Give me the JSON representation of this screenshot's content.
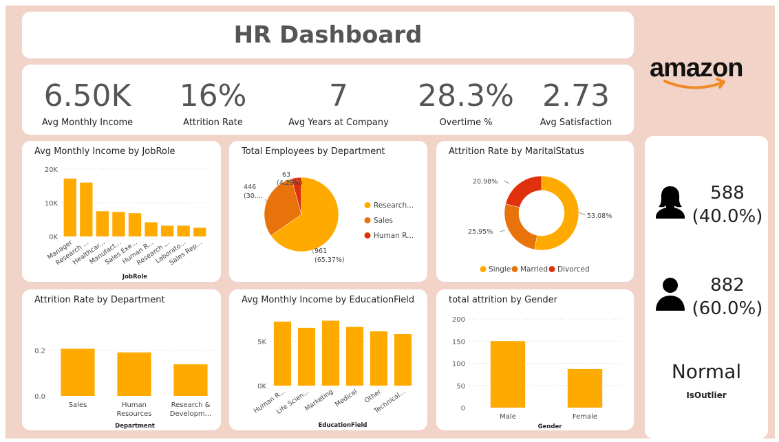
{
  "header": {
    "title": "HR Dashboard"
  },
  "brand": {
    "logo_text": "amazon"
  },
  "kpis": [
    {
      "value": "6.50K",
      "label": "Avg Monthly Income"
    },
    {
      "value": "16%",
      "label": "Attrition Rate"
    },
    {
      "value": "7",
      "label": "Avg Years at Company"
    },
    {
      "value": "28.3%",
      "label": "Overtime %"
    },
    {
      "value": "2.73",
      "label": "Avg Satisfaction"
    }
  ],
  "colors": {
    "primary": "#FFAA00",
    "secondary": "#E8730A",
    "tertiary": "#E0310C",
    "background": "#F2D3C8"
  },
  "gender_cards": {
    "female": {
      "value": "588",
      "pct": "(40.0%)",
      "icon": "female-person-icon"
    },
    "male": {
      "value": "882",
      "pct": "(60.0%)",
      "icon": "male-person-icon"
    }
  },
  "outlier_card": {
    "value": "Normal",
    "label": "IsOutlier"
  },
  "chart_data": [
    {
      "id": "income_by_jobrole",
      "type": "bar",
      "title": "Avg Monthly Income by JobRole",
      "xlabel": "JobRole",
      "categories": [
        "Manager",
        "Research ...",
        "Healthcar...",
        "Manufact...",
        "Sales Exe...",
        "Human R...",
        "Research ...",
        "Laborato...",
        "Sales Rep..."
      ],
      "values": [
        17200,
        16000,
        7500,
        7300,
        6900,
        4200,
        3200,
        3200,
        2600
      ],
      "ylim": [
        0,
        20000
      ],
      "yticks": [
        0,
        10000,
        20000
      ],
      "ytick_labels": [
        "0K",
        "10K",
        "20K"
      ],
      "grid": true
    },
    {
      "id": "employees_by_department",
      "type": "pie",
      "title": "Total Employees by Department",
      "labels": [
        "Research...",
        "Sales",
        "Human R..."
      ],
      "values": [
        961,
        446,
        63
      ],
      "data_labels": [
        {
          "value": "961",
          "pct": "(65.37%)"
        },
        {
          "value": "446",
          "pct": "(30...."
        },
        {
          "value": "63",
          "pct": "(4.29%)"
        }
      ],
      "legend": "right"
    },
    {
      "id": "attrition_by_marital",
      "type": "pie",
      "donut": true,
      "title": "Attrition Rate by MaritalStatus",
      "labels": [
        "Single",
        "Married",
        "Divorced"
      ],
      "values": [
        53.08,
        25.95,
        20.98
      ],
      "data_labels": [
        "53.08%",
        "25.95%",
        "20.98%"
      ],
      "legend": "bottom"
    },
    {
      "id": "attrition_by_department",
      "type": "bar",
      "title": "Attrition Rate by Department",
      "xlabel": "Department",
      "categories": [
        "Sales",
        "Human Resources",
        "Research & Developm..."
      ],
      "category_lines": [
        [
          "Sales"
        ],
        [
          "Human",
          "Resources"
        ],
        [
          "Research &",
          "Developm..."
        ]
      ],
      "values": [
        0.206,
        0.19,
        0.138
      ],
      "ylim": [
        0,
        0.3
      ],
      "yticks": [
        0,
        0.2
      ],
      "ytick_labels": [
        "0.0",
        "0.2"
      ],
      "grid": true
    },
    {
      "id": "income_by_education",
      "type": "bar",
      "title": "Avg Monthly Income by EducationField",
      "xlabel": "EducationField",
      "categories": [
        "Human R...",
        "Life Scien...",
        "Marketing",
        "Medical",
        "Other",
        "Technical..."
      ],
      "values": [
        7200,
        6500,
        7300,
        6600,
        6100,
        5800
      ],
      "ylim": [
        0,
        8500
      ],
      "yticks": [
        0,
        5000
      ],
      "ytick_labels": [
        "0K",
        "5K"
      ],
      "grid": true
    },
    {
      "id": "attrition_by_gender",
      "type": "bar",
      "title": "total attrition by Gender",
      "xlabel": "Gender",
      "categories": [
        "Male",
        "Female"
      ],
      "values": [
        150,
        87
      ],
      "ylim": [
        0,
        200
      ],
      "yticks": [
        0,
        50,
        100,
        150,
        200
      ],
      "ytick_labels": [
        "0",
        "50",
        "100",
        "150",
        "200"
      ],
      "grid": true
    }
  ]
}
